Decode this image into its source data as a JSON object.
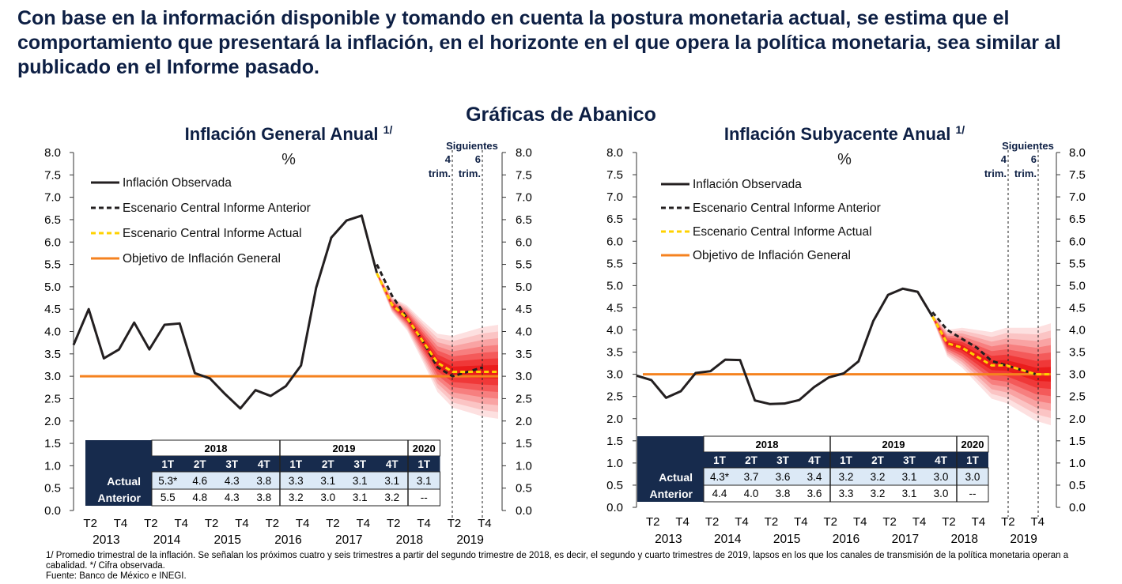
{
  "headline": "Con base en la información disponible y tomando en cuenta la postura monetaria actual, se estima que el comportamiento que presentará la inflación, en el horizonte en el que opera la política monetaria, sea similar al publicado en el Informe pasado.",
  "section_title": "Gráficas de Abanico",
  "footnotes": {
    "note1": "1/ Promedio trimestral de la inflación. Se señalan los próximos cuatro y seis trimestres a partir del segundo trimestre de 2018, es decir, el segundo y cuarto trimestres de 2019, lapsos en los que los canales de transmisión de la política monetaria operan a cabalidad. */ Cifra observada.",
    "source": "Fuente: Banco de México e INEGI."
  },
  "colors": {
    "observed": "#231f20",
    "previous": "#231f20",
    "current": "#ffd200",
    "target": "#f5821f",
    "fan": [
      "#fde0e0",
      "#fbc4c4",
      "#f9a3a3",
      "#f77f7f",
      "#f45a5a",
      "#f03838",
      "#ea1c1c"
    ],
    "table_header": "#172b4d",
    "table_blue": "#dce9f6",
    "title": "#0d1f44"
  },
  "chart_data": [
    {
      "type": "line",
      "title": "Inflación General Anual",
      "title_sup": "1/",
      "unit": "%",
      "ylim": [
        0,
        8
      ],
      "yticks": [
        "0.0",
        "0.5",
        "1.0",
        "1.5",
        "2.0",
        "2.5",
        "3.0",
        "3.5",
        "4.0",
        "4.5",
        "5.0",
        "5.5",
        "6.0",
        "6.5",
        "7.0",
        "7.5",
        "8.0"
      ],
      "x_quarters": [
        "T1 2013",
        "T2 2013",
        "T3 2013",
        "T4 2013",
        "T1 2014",
        "T2 2014",
        "T3 2014",
        "T4 2014",
        "T1 2015",
        "T2 2015",
        "T3 2015",
        "T4 2015",
        "T1 2016",
        "T2 2016",
        "T3 2016",
        "T4 2016",
        "T1 2017",
        "T2 2017",
        "T3 2017",
        "T4 2017",
        "T1 2018",
        "T2 2018",
        "T3 2018",
        "T4 2018",
        "T1 2019",
        "T2 2019",
        "T3 2019",
        "T4 2019",
        "T1 2020"
      ],
      "x_tick_labels": [
        "T2",
        "T4",
        "T2",
        "T4",
        "T2",
        "T4",
        "T2",
        "T4",
        "T2",
        "T4",
        "T2",
        "T4",
        "T2",
        "T4"
      ],
      "x_year_labels": [
        "2013",
        "2014",
        "2015",
        "2016",
        "2017",
        "2018",
        "2019"
      ],
      "series": [
        {
          "name": "Inflación Observada",
          "style": "solid",
          "values": [
            3.7,
            4.5,
            3.4,
            3.6,
            4.2,
            3.6,
            4.15,
            4.18,
            3.07,
            2.95,
            2.6,
            2.28,
            2.69,
            2.56,
            2.78,
            3.24,
            4.98,
            6.1,
            6.48,
            6.59,
            5.31
          ]
        },
        {
          "name": "Escenario Central Informe Anterior",
          "style": "dashed",
          "start_index": 20,
          "values": [
            5.5,
            4.8,
            4.3,
            3.8,
            3.2,
            3.0,
            3.1,
            3.2
          ]
        },
        {
          "name": "Escenario Central Informe Actual",
          "style": "dashed",
          "start_index": 20,
          "values": [
            5.3,
            4.6,
            4.3,
            3.8,
            3.3,
            3.1,
            3.1,
            3.1,
            3.1
          ]
        },
        {
          "name": "Objetivo de Inflación General",
          "style": "solid",
          "constant": 3.0
        }
      ],
      "fan_band_width": [
        0.05,
        0.17,
        0.28,
        0.45,
        0.65,
        0.8,
        0.9,
        1.0,
        1.05
      ],
      "markers": {
        "label": "Siguientes",
        "first": "4 trim.",
        "second": "6 trim."
      },
      "table": {
        "years": [
          {
            "label": "2018",
            "span": 4
          },
          {
            "label": "2019",
            "span": 4
          },
          {
            "label": "2020",
            "span": 1
          }
        ],
        "quarters": [
          "1T",
          "2T",
          "3T",
          "4T",
          "1T",
          "2T",
          "3T",
          "4T",
          "1T"
        ],
        "rows": [
          {
            "label": "Actual",
            "values": [
              "5.3*",
              "4.6",
              "4.3",
              "3.8",
              "3.3",
              "3.1",
              "3.1",
              "3.1",
              "3.1"
            ]
          },
          {
            "label": "Anterior",
            "values": [
              "5.5",
              "4.8",
              "4.3",
              "3.8",
              "3.2",
              "3.0",
              "3.1",
              "3.2",
              "--"
            ]
          }
        ]
      }
    },
    {
      "type": "line",
      "title": "Inflación Subyacente Anual",
      "title_sup": "1/",
      "unit": "%",
      "ylim": [
        0,
        8
      ],
      "yticks": [
        "0.0",
        "0.5",
        "1.0",
        "1.5",
        "2.0",
        "2.5",
        "3.0",
        "3.5",
        "4.0",
        "4.5",
        "5.0",
        "5.5",
        "6.0",
        "6.5",
        "7.0",
        "7.5",
        "8.0"
      ],
      "x_quarters": [
        "T1 2013",
        "T2 2013",
        "T3 2013",
        "T4 2013",
        "T1 2014",
        "T2 2014",
        "T3 2014",
        "T4 2014",
        "T1 2015",
        "T2 2015",
        "T3 2015",
        "T4 2015",
        "T1 2016",
        "T2 2016",
        "T3 2016",
        "T4 2016",
        "T1 2017",
        "T2 2017",
        "T3 2017",
        "T4 2017",
        "T1 2018",
        "T2 2018",
        "T3 2018",
        "T4 2018",
        "T1 2019",
        "T2 2019",
        "T3 2019",
        "T4 2019",
        "T1 2020"
      ],
      "x_tick_labels": [
        "T2",
        "T4",
        "T2",
        "T4",
        "T2",
        "T4",
        "T2",
        "T4",
        "T2",
        "T4",
        "T2",
        "T4",
        "T2",
        "T4"
      ],
      "x_year_labels": [
        "2013",
        "2014",
        "2015",
        "2016",
        "2017",
        "2018",
        "2019"
      ],
      "series": [
        {
          "name": "Inflación Observada",
          "style": "solid",
          "values": [
            2.97,
            2.87,
            2.47,
            2.62,
            3.03,
            3.07,
            3.33,
            3.32,
            2.41,
            2.33,
            2.34,
            2.42,
            2.71,
            2.93,
            3.02,
            3.29,
            4.2,
            4.79,
            4.93,
            4.86,
            4.3
          ]
        },
        {
          "name": "Escenario Central Informe Anterior",
          "style": "dashed",
          "start_index": 20,
          "values": [
            4.4,
            4.0,
            3.8,
            3.6,
            3.3,
            3.2,
            3.1,
            3.0
          ]
        },
        {
          "name": "Escenario Central Informe Actual",
          "style": "dashed",
          "start_index": 20,
          "values": [
            4.3,
            3.7,
            3.6,
            3.4,
            3.2,
            3.2,
            3.1,
            3.0,
            3.0
          ]
        },
        {
          "name": "Objetivo de Inflación General",
          "style": "solid",
          "constant": 3.0
        }
      ],
      "fan_band_width": [
        0.05,
        0.3,
        0.45,
        0.6,
        0.75,
        0.85,
        0.95,
        1.05,
        1.15
      ],
      "markers": {
        "label": "Siguientes",
        "first": "4 trim.",
        "second": "6 trim."
      },
      "table": {
        "years": [
          {
            "label": "2018",
            "span": 4
          },
          {
            "label": "2019",
            "span": 4
          },
          {
            "label": "2020",
            "span": 1
          }
        ],
        "quarters": [
          "1T",
          "2T",
          "3T",
          "4T",
          "1T",
          "2T",
          "3T",
          "4T",
          "1T"
        ],
        "rows": [
          {
            "label": "Actual",
            "values": [
              "4.3*",
              "3.7",
              "3.6",
              "3.4",
              "3.2",
              "3.2",
              "3.1",
              "3.0",
              "3.0"
            ]
          },
          {
            "label": "Anterior",
            "values": [
              "4.4",
              "4.0",
              "3.8",
              "3.6",
              "3.3",
              "3.2",
              "3.1",
              "3.0",
              "--"
            ]
          }
        ]
      }
    }
  ]
}
